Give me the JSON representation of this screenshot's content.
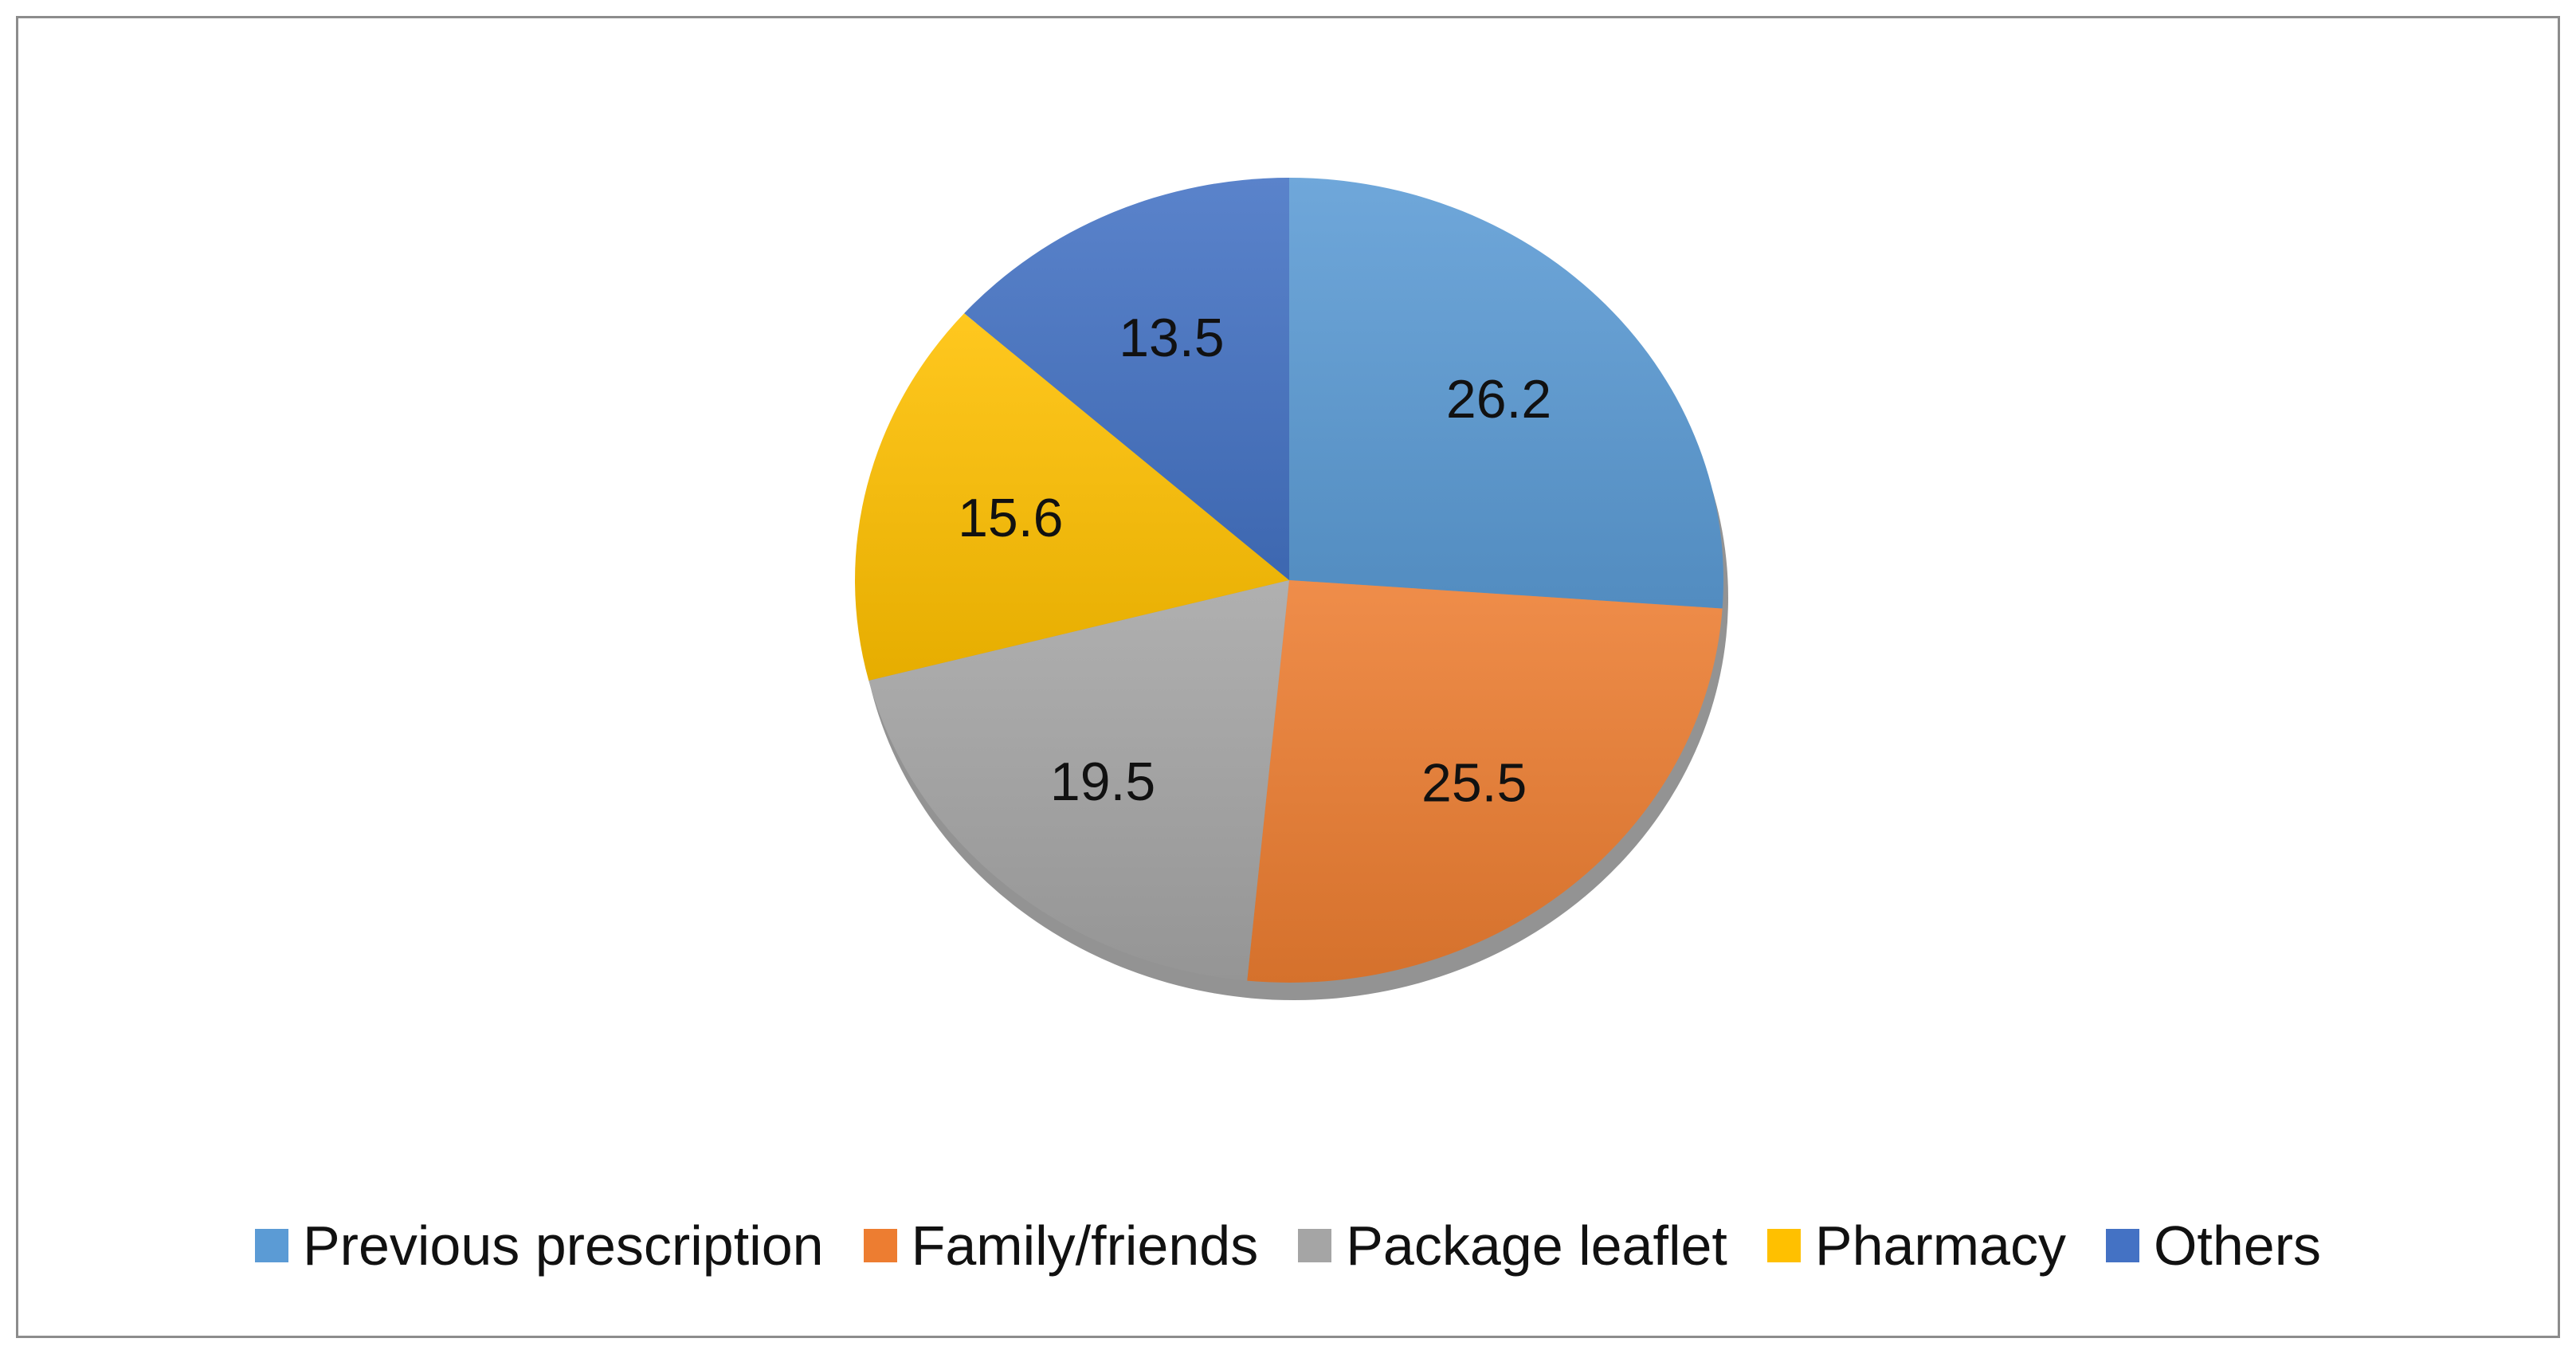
{
  "chart_data": {
    "type": "pie",
    "title": "",
    "categories": [
      "Previous prescription",
      "Family/friends",
      "Package leaflet",
      "Pharmacy",
      "Others"
    ],
    "values": [
      26.2,
      25.5,
      19.5,
      15.6,
      13.5
    ],
    "data_labels": [
      "26.2",
      "25.5",
      "19.5",
      "15.6",
      "13.5"
    ],
    "colors": [
      "#5b9bd5",
      "#ed7d31",
      "#a5a5a5",
      "#ffc000",
      "#4472c4"
    ],
    "legend_position": "bottom",
    "start_angle": "12 o'clock, clockwise"
  }
}
